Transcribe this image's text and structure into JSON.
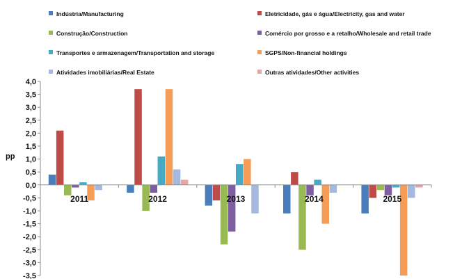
{
  "chart_data": {
    "type": "bar",
    "title": "",
    "xlabel": "",
    "ylabel": "pp",
    "ylim": [
      -3.5,
      4.0
    ],
    "yticks": [
      "4,0",
      "3,5",
      "3,0",
      "2,5",
      "2,0",
      "1,5",
      "1,0",
      "0,5",
      "0,0",
      "-0,5",
      "-1,0",
      "-1,5",
      "-2,0",
      "-2,5",
      "-3,0",
      "-3,5"
    ],
    "grid": false,
    "legend_position": "top",
    "categories": [
      "2011",
      "2012",
      "2013",
      "2014",
      "2015"
    ],
    "series": [
      {
        "name": "Indústria/Manufacturing",
        "color": "#4a7ebb",
        "values": [
          0.4,
          -0.3,
          -0.8,
          -1.1,
          -1.1
        ]
      },
      {
        "name": "Eletricidade, gás e água/Electricity, gas and water",
        "color": "#be4b48",
        "values": [
          2.1,
          3.7,
          -0.6,
          0.5,
          -0.5
        ]
      },
      {
        "name": "Construção/Construction",
        "color": "#98b954",
        "values": [
          -0.4,
          -1.0,
          -2.3,
          -2.5,
          -0.2
        ]
      },
      {
        "name": "Comércio por grosso e a retalho/Wholesale and retail trade",
        "color": "#7d5fa0",
        "values": [
          -0.1,
          -0.3,
          -1.8,
          -0.4,
          -0.4
        ]
      },
      {
        "name": "Transportes e armazenagem/Transportation and storage",
        "color": "#46aac5",
        "values": [
          0.1,
          1.1,
          0.8,
          0.2,
          -0.1
        ]
      },
      {
        "name": "SGPS/Non-financial holdings",
        "color": "#f59d56",
        "values": [
          -0.6,
          3.7,
          1.0,
          -1.5,
          -3.5
        ]
      },
      {
        "name": "Atividades imobiliárias/Real Estate",
        "color": "#a5b8dd",
        "values": [
          -0.2,
          0.6,
          -1.1,
          -0.3,
          -0.5
        ]
      },
      {
        "name": "Outras atividades/Other activities",
        "color": "#e7a5a4",
        "values": [
          0.0,
          0.2,
          0.0,
          0.0,
          -0.1
        ]
      }
    ]
  }
}
